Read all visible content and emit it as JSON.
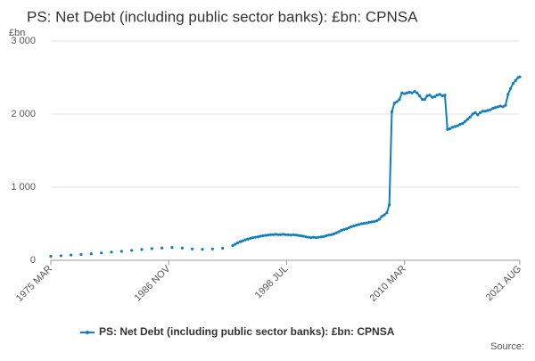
{
  "chart_data": {
    "type": "line",
    "title": "PS: Net Debt (including public sector banks): £bn: CPNSA",
    "y_unit": "£bn",
    "source": "Source:",
    "x": [
      "1975 MAR",
      "1976 MAR",
      "1977 MAR",
      "1978 MAR",
      "1979 MAR",
      "1980 MAR",
      "1981 MAR",
      "1982 MAR",
      "1983 MAR",
      "1984 MAR",
      "1985 MAR",
      "1986 MAR",
      "1987 MAR",
      "1988 MAR",
      "1989 MAR",
      "1990 MAR",
      "1991 MAR",
      "1992 MAR",
      "1993 MAR",
      "1993 JUN",
      "1993 SEP",
      "1993 DEC",
      "1994 MAR",
      "1994 JUN",
      "1994 SEP",
      "1994 DEC",
      "1995 MAR",
      "1995 JUN",
      "1995 SEP",
      "1995 DEC",
      "1996 MAR",
      "1996 JUN",
      "1996 SEP",
      "1996 DEC",
      "1997 MAR",
      "1997 JUN",
      "1997 SEP",
      "1997 DEC",
      "1998 MAR",
      "1998 JUN",
      "1998 SEP",
      "1998 DEC",
      "1999 MAR",
      "1999 JUN",
      "1999 SEP",
      "1999 DEC",
      "2000 MAR",
      "2000 JUN",
      "2000 SEP",
      "2000 DEC",
      "2001 MAR",
      "2001 JUN",
      "2001 SEP",
      "2001 DEC",
      "2002 MAR",
      "2002 JUN",
      "2002 SEP",
      "2002 DEC",
      "2003 MAR",
      "2003 JUN",
      "2003 SEP",
      "2003 DEC",
      "2004 MAR",
      "2004 JUN",
      "2004 SEP",
      "2004 DEC",
      "2005 MAR",
      "2005 JUN",
      "2005 SEP",
      "2005 DEC",
      "2006 MAR",
      "2006 JUN",
      "2006 SEP",
      "2006 DEC",
      "2007 MAR",
      "2007 JUN",
      "2007 SEP",
      "2007 DEC",
      "2008 MAR",
      "2008 JUN",
      "2008 SEP",
      "2008 DEC",
      "2009 MAR",
      "2009 JUN",
      "2009 SEP",
      "2009 DEC",
      "2010 MAR",
      "2010 JUN",
      "2010 SEP",
      "2010 DEC",
      "2011 MAR",
      "2011 JUN",
      "2011 SEP",
      "2011 DEC",
      "2012 MAR",
      "2012 JUN",
      "2012 SEP",
      "2012 DEC",
      "2013 MAR",
      "2013 JUN",
      "2013 SEP",
      "2013 DEC",
      "2014 MAR",
      "2014 JUN",
      "2014 SEP",
      "2014 DEC",
      "2015 MAR",
      "2015 JUN",
      "2015 SEP",
      "2015 DEC",
      "2016 MAR",
      "2016 JUN",
      "2016 SEP",
      "2016 DEC",
      "2017 MAR",
      "2017 JUN",
      "2017 SEP",
      "2017 DEC",
      "2018 MAR",
      "2018 JUN",
      "2018 SEP",
      "2018 DEC",
      "2019 MAR",
      "2019 JUN",
      "2019 SEP",
      "2019 DEC",
      "2020 MAR",
      "2020 JUN",
      "2020 SEP",
      "2020 DEC",
      "2021 MAR",
      "2021 JUN",
      "2021 AUG"
    ],
    "series": [
      {
        "name": "PS: Net Debt (including public sector banks): £bn: CPNSA",
        "color": "#0f7fc0",
        "values": [
          55,
          62,
          72,
          80,
          88,
          100,
          112,
          122,
          135,
          148,
          160,
          168,
          175,
          168,
          155,
          150,
          155,
          165,
          200,
          220,
          240,
          255,
          265,
          280,
          290,
          300,
          310,
          315,
          320,
          330,
          335,
          340,
          345,
          350,
          350,
          355,
          350,
          350,
          355,
          350,
          350,
          345,
          350,
          345,
          340,
          335,
          330,
          320,
          315,
          310,
          315,
          310,
          315,
          320,
          325,
          335,
          345,
          350,
          360,
          375,
          390,
          410,
          420,
          430,
          445,
          460,
          470,
          480,
          490,
          500,
          505,
          510,
          520,
          525,
          530,
          540,
          560,
          600,
          620,
          650,
          760,
          2030,
          2150,
          2170,
          2200,
          2290,
          2280,
          2290,
          2300,
          2290,
          2310,
          2290,
          2250,
          2200,
          2200,
          2250,
          2260,
          2230,
          2240,
          2260,
          2270,
          2250,
          2260,
          1790,
          1800,
          1820,
          1830,
          1840,
          1860,
          1870,
          1900,
          1930,
          1960,
          2000,
          2020,
          1990,
          2020,
          2040,
          2040,
          2050,
          2060,
          2080,
          2090,
          2100,
          2110,
          2100,
          2120,
          2270,
          2350,
          2420,
          2460,
          2500,
          2510
        ]
      }
    ],
    "xlim": [
      "1975 MAR",
      "2021 AUG"
    ],
    "xticks": [
      "1975 MAR",
      "1986 NOV",
      "1998 JUL",
      "2010 MAR",
      "2021 AUG"
    ],
    "ylim": [
      0,
      3000
    ],
    "yticks": [
      0,
      {
        "value": 1000,
        "label": "1 000"
      },
      {
        "value": 2000,
        "label": "2 000"
      },
      {
        "value": 3000,
        "label": "3 000"
      }
    ],
    "grid": true
  }
}
